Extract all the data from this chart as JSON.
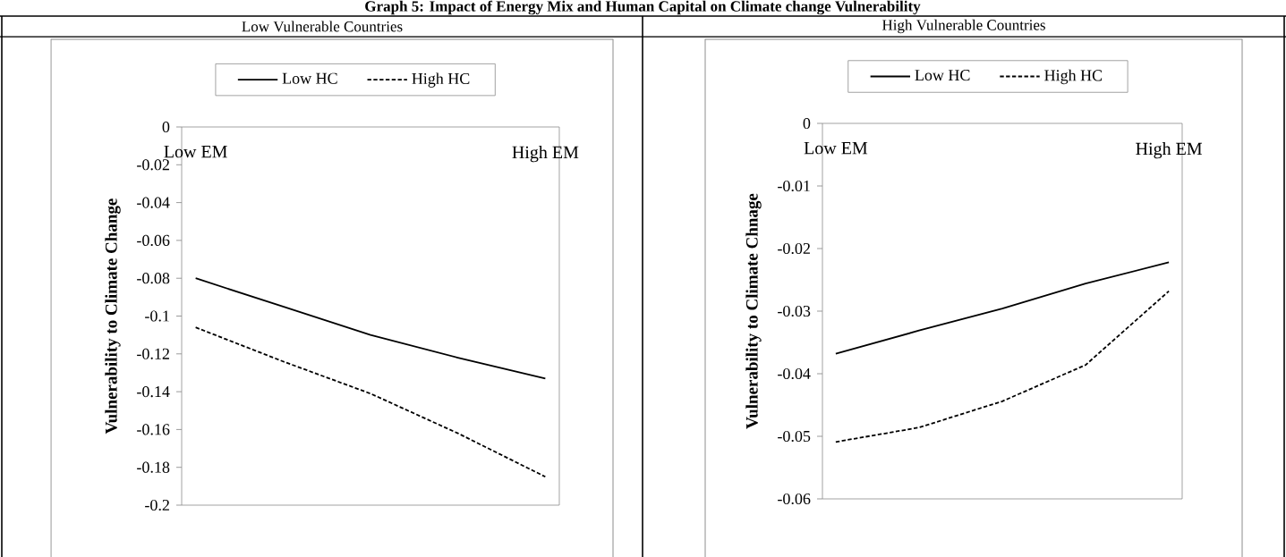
{
  "chart_data": [
    {
      "type": "line",
      "title": "Low Vulnerable Countries",
      "annotations": [
        "Graph 5: Impact of Energy Mix and Human Capital on Climate change Vulnerability"
      ],
      "ylabel": "Vulnerability to Climate Change",
      "categories": [
        "Low EM",
        null,
        null,
        null,
        "High EM"
      ],
      "ylim": [
        -0.2,
        0
      ],
      "yticks": [
        -0.2,
        -0.18,
        -0.16,
        -0.14,
        -0.12,
        -0.1,
        -0.08,
        -0.06,
        -0.04,
        -0.02,
        0
      ],
      "legend": "top",
      "marker": "none",
      "grid": false,
      "series": [
        {
          "name": "Low HC",
          "color": "#000000",
          "line_style": "solid",
          "values": [
            -0.08,
            -0.095,
            -0.11,
            -0.122,
            -0.133
          ]
        },
        {
          "name": "High HC",
          "color": "#000000",
          "line_style": "dashed",
          "values": [
            -0.106,
            -0.124,
            -0.141,
            -0.162,
            -0.185
          ]
        }
      ]
    },
    {
      "type": "line",
      "title": "High Vulnerable Countries",
      "ylabel": "Vulnerability to Climate Chnage",
      "categories": [
        "Low EM",
        null,
        null,
        null,
        "High EM"
      ],
      "ylim": [
        -0.06,
        0
      ],
      "yticks": [
        -0.06,
        -0.05,
        -0.04,
        -0.03,
        -0.02,
        -0.01,
        0
      ],
      "legend": "top",
      "marker": "none",
      "grid": false,
      "series": [
        {
          "name": "Low HC",
          "color": "#000000",
          "line_style": "solid",
          "values": [
            -0.0368,
            -0.0331,
            -0.0296,
            -0.0256,
            -0.0222
          ]
        },
        {
          "name": "High HC",
          "color": "#000000",
          "line_style": "dashed",
          "values": [
            -0.0509,
            -0.0486,
            -0.0444,
            -0.0386,
            -0.0268
          ]
        }
      ]
    }
  ]
}
